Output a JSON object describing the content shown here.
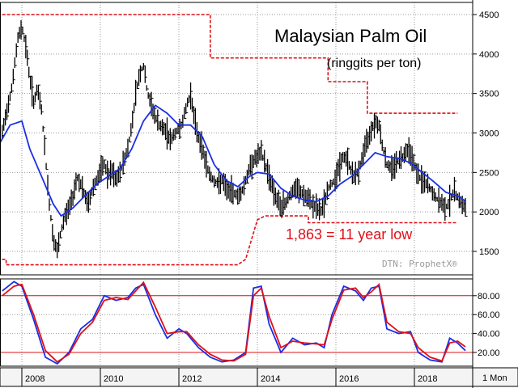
{
  "chart_data": [
    {
      "type": "bar",
      "subtype": "weekly-hlc-price-bars-with-moving-average",
      "title": "Malaysian Palm Oil",
      "subtitle": "(ringgits per ton)",
      "annotation": "1,863 = 11 year low",
      "watermark": "DTN: ProphetX®",
      "ylim": [
        1250,
        4550
      ],
      "yticks": [
        1500,
        2000,
        2500,
        3000,
        3500,
        4000,
        4500
      ],
      "grid": true,
      "colors": {
        "bars": "#000000",
        "moving_average": "#1a2ee6",
        "guides": "#e0101a",
        "grid": "#9a9a9a"
      },
      "price": [
        [
          2007.5,
          3000
        ],
        [
          2007.75,
          3600
        ],
        [
          2007.9,
          4200
        ],
        [
          2008.0,
          4350
        ],
        [
          2008.1,
          4100
        ],
        [
          2008.2,
          3700
        ],
        [
          2008.3,
          3400
        ],
        [
          2008.4,
          3550
        ],
        [
          2008.5,
          3300
        ],
        [
          2008.6,
          2700
        ],
        [
          2008.7,
          2100
        ],
        [
          2008.8,
          1650
        ],
        [
          2008.9,
          1500
        ],
        [
          2009.0,
          1750
        ],
        [
          2009.1,
          1950
        ],
        [
          2009.2,
          2050
        ],
        [
          2009.3,
          2200
        ],
        [
          2009.4,
          2450
        ],
        [
          2009.5,
          2350
        ],
        [
          2009.6,
          2200
        ],
        [
          2009.7,
          2100
        ],
        [
          2009.8,
          2300
        ],
        [
          2009.9,
          2400
        ],
        [
          2010.0,
          2500
        ],
        [
          2010.1,
          2600
        ],
        [
          2010.2,
          2450
        ],
        [
          2010.3,
          2500
        ],
        [
          2010.4,
          2400
        ],
        [
          2010.5,
          2500
        ],
        [
          2010.6,
          2650
        ],
        [
          2010.7,
          2800
        ],
        [
          2010.8,
          3100
        ],
        [
          2010.9,
          3500
        ],
        [
          2011.0,
          3750
        ],
        [
          2011.1,
          3850
        ],
        [
          2011.2,
          3500
        ],
        [
          2011.3,
          3350
        ],
        [
          2011.4,
          3200
        ],
        [
          2011.5,
          3100
        ],
        [
          2011.6,
          3050
        ],
        [
          2011.7,
          3000
        ],
        [
          2011.8,
          2900
        ],
        [
          2011.9,
          3000
        ],
        [
          2012.0,
          3050
        ],
        [
          2012.1,
          3150
        ],
        [
          2012.2,
          3350
        ],
        [
          2012.3,
          3500
        ],
        [
          2012.4,
          3150
        ],
        [
          2012.5,
          2950
        ],
        [
          2012.6,
          2800
        ],
        [
          2012.7,
          2600
        ],
        [
          2012.8,
          2450
        ],
        [
          2012.9,
          2400
        ],
        [
          2013.0,
          2350
        ],
        [
          2013.1,
          2400
        ],
        [
          2013.2,
          2300
        ],
        [
          2013.3,
          2250
        ],
        [
          2013.4,
          2250
        ],
        [
          2013.5,
          2200
        ],
        [
          2013.6,
          2250
        ],
        [
          2013.7,
          2400
        ],
        [
          2013.8,
          2550
        ],
        [
          2013.9,
          2650
        ],
        [
          2014.0,
          2700
        ],
        [
          2014.1,
          2750
        ],
        [
          2014.2,
          2600
        ],
        [
          2014.3,
          2450
        ],
        [
          2014.4,
          2300
        ],
        [
          2014.5,
          2150
        ],
        [
          2014.6,
          2050
        ],
        [
          2014.7,
          2100
        ],
        [
          2014.8,
          2200
        ],
        [
          2014.9,
          2250
        ],
        [
          2015.0,
          2300
        ],
        [
          2015.1,
          2250
        ],
        [
          2015.2,
          2200
        ],
        [
          2015.3,
          2150
        ],
        [
          2015.4,
          2100
        ],
        [
          2015.5,
          2050
        ],
        [
          2015.6,
          2000
        ],
        [
          2015.7,
          2100
        ],
        [
          2015.8,
          2300
        ],
        [
          2015.9,
          2350
        ],
        [
          2016.0,
          2450
        ],
        [
          2016.1,
          2600
        ],
        [
          2016.2,
          2700
        ],
        [
          2016.3,
          2650
        ],
        [
          2016.4,
          2500
        ],
        [
          2016.5,
          2450
        ],
        [
          2016.6,
          2550
        ],
        [
          2016.7,
          2750
        ],
        [
          2016.8,
          2900
        ],
        [
          2016.9,
          3050
        ],
        [
          2017.0,
          3150
        ],
        [
          2017.1,
          3100
        ],
        [
          2017.2,
          2800
        ],
        [
          2017.3,
          2600
        ],
        [
          2017.4,
          2550
        ],
        [
          2017.5,
          2600
        ],
        [
          2017.6,
          2650
        ],
        [
          2017.7,
          2700
        ],
        [
          2017.8,
          2800
        ],
        [
          2017.9,
          2750
        ],
        [
          2018.0,
          2600
        ],
        [
          2018.1,
          2450
        ],
        [
          2018.2,
          2400
        ],
        [
          2018.3,
          2350
        ],
        [
          2018.4,
          2300
        ],
        [
          2018.5,
          2200
        ],
        [
          2018.6,
          2150
        ],
        [
          2018.7,
          2100
        ],
        [
          2018.8,
          2050
        ],
        [
          2018.9,
          2150
        ],
        [
          2019.0,
          2250
        ],
        [
          2019.1,
          2200
        ],
        [
          2019.2,
          2100
        ],
        [
          2019.3,
          2050
        ]
      ],
      "moving_average": [
        [
          2007.0,
          2380
        ],
        [
          2007.3,
          2750
        ],
        [
          2007.7,
          3100
        ],
        [
          2008.0,
          3150
        ],
        [
          2008.2,
          2800
        ],
        [
          2008.5,
          2450
        ],
        [
          2008.8,
          2100
        ],
        [
          2009.0,
          1950
        ],
        [
          2009.3,
          2050
        ],
        [
          2009.6,
          2200
        ],
        [
          2009.9,
          2350
        ],
        [
          2010.2,
          2450
        ],
        [
          2010.5,
          2550
        ],
        [
          2010.8,
          2800
        ],
        [
          2011.1,
          3150
        ],
        [
          2011.4,
          3350
        ],
        [
          2011.7,
          3250
        ],
        [
          2012.0,
          3100
        ],
        [
          2012.3,
          3100
        ],
        [
          2012.6,
          2950
        ],
        [
          2012.9,
          2600
        ],
        [
          2013.2,
          2400
        ],
        [
          2013.5,
          2320
        ],
        [
          2013.8,
          2450
        ],
        [
          2014.0,
          2500
        ],
        [
          2014.3,
          2480
        ],
        [
          2014.6,
          2300
        ],
        [
          2014.9,
          2200
        ],
        [
          2015.2,
          2150
        ],
        [
          2015.5,
          2130
        ],
        [
          2015.8,
          2200
        ],
        [
          2016.1,
          2350
        ],
        [
          2016.4,
          2450
        ],
        [
          2016.7,
          2600
        ],
        [
          2017.0,
          2750
        ],
        [
          2017.3,
          2700
        ],
        [
          2017.6,
          2680
        ],
        [
          2017.9,
          2620
        ],
        [
          2018.2,
          2500
        ],
        [
          2018.5,
          2380
        ],
        [
          2018.8,
          2250
        ],
        [
          2019.1,
          2200
        ],
        [
          2019.3,
          2140
        ]
      ],
      "upper_guide": [
        [
          2007.0,
          4500
        ],
        [
          2012.8,
          4500
        ],
        [
          2012.8,
          3950
        ],
        [
          2015.8,
          3950
        ],
        [
          2015.8,
          3650
        ],
        [
          2016.8,
          3650
        ],
        [
          2016.8,
          3250
        ],
        [
          2019.1,
          3250
        ]
      ],
      "lower_guide": [
        [
          2007.0,
          1400
        ],
        [
          2007.6,
          1400
        ],
        [
          2007.6,
          1330
        ],
        [
          2013.5,
          1330
        ],
        [
          2013.7,
          1400
        ],
        [
          2014.0,
          1900
        ],
        [
          2014.2,
          1950
        ],
        [
          2015.3,
          1950
        ],
        [
          2015.3,
          1863
        ],
        [
          2019.1,
          1863
        ]
      ]
    },
    {
      "type": "line",
      "subtype": "stochastic-oscillator",
      "ylim": [
        0,
        100
      ],
      "yticks": [
        "20.00",
        "40.00",
        "60.00",
        "80.00"
      ],
      "reference_lines": [
        20,
        80
      ],
      "series": [
        {
          "color": "#1a2ee6",
          "values": [
            [
              2007.5,
              85
            ],
            [
              2007.8,
              95
            ],
            [
              2008.0,
              90
            ],
            [
              2008.3,
              55
            ],
            [
              2008.6,
              15
            ],
            [
              2008.9,
              8
            ],
            [
              2009.2,
              20
            ],
            [
              2009.5,
              45
            ],
            [
              2009.8,
              55
            ],
            [
              2010.1,
              80
            ],
            [
              2010.4,
              75
            ],
            [
              2010.7,
              78
            ],
            [
              2010.9,
              88
            ],
            [
              2011.1,
              92
            ],
            [
              2011.4,
              60
            ],
            [
              2011.7,
              35
            ],
            [
              2012.0,
              45
            ],
            [
              2012.2,
              40
            ],
            [
              2012.5,
              25
            ],
            [
              2012.8,
              15
            ],
            [
              2013.1,
              10
            ],
            [
              2013.4,
              12
            ],
            [
              2013.7,
              20
            ],
            [
              2013.9,
              88
            ],
            [
              2014.1,
              90
            ],
            [
              2014.3,
              50
            ],
            [
              2014.6,
              20
            ],
            [
              2014.9,
              35
            ],
            [
              2015.2,
              28
            ],
            [
              2015.5,
              30
            ],
            [
              2015.7,
              25
            ],
            [
              2015.9,
              60
            ],
            [
              2016.2,
              90
            ],
            [
              2016.5,
              85
            ],
            [
              2016.7,
              75
            ],
            [
              2016.9,
              88
            ],
            [
              2017.1,
              90
            ],
            [
              2017.3,
              45
            ],
            [
              2017.6,
              40
            ],
            [
              2017.9,
              42
            ],
            [
              2018.1,
              20
            ],
            [
              2018.4,
              12
            ],
            [
              2018.7,
              10
            ],
            [
              2018.9,
              35
            ],
            [
              2019.1,
              30
            ],
            [
              2019.3,
              22
            ]
          ]
        },
        {
          "color": "#e0101a",
          "values": [
            [
              2007.5,
              80
            ],
            [
              2007.8,
              90
            ],
            [
              2008.0,
              92
            ],
            [
              2008.3,
              60
            ],
            [
              2008.6,
              22
            ],
            [
              2008.9,
              10
            ],
            [
              2009.2,
              18
            ],
            [
              2009.5,
              40
            ],
            [
              2009.8,
              52
            ],
            [
              2010.1,
              75
            ],
            [
              2010.4,
              78
            ],
            [
              2010.7,
              76
            ],
            [
              2010.9,
              85
            ],
            [
              2011.1,
              94
            ],
            [
              2011.4,
              68
            ],
            [
              2011.7,
              40
            ],
            [
              2012.0,
              42
            ],
            [
              2012.2,
              42
            ],
            [
              2012.5,
              28
            ],
            [
              2012.8,
              18
            ],
            [
              2013.1,
              12
            ],
            [
              2013.4,
              11
            ],
            [
              2013.7,
              18
            ],
            [
              2013.9,
              80
            ],
            [
              2014.1,
              88
            ],
            [
              2014.3,
              58
            ],
            [
              2014.6,
              25
            ],
            [
              2014.9,
              32
            ],
            [
              2015.2,
              30
            ],
            [
              2015.5,
              29
            ],
            [
              2015.7,
              28
            ],
            [
              2015.9,
              55
            ],
            [
              2016.2,
              86
            ],
            [
              2016.5,
              88
            ],
            [
              2016.7,
              78
            ],
            [
              2016.9,
              84
            ],
            [
              2017.1,
              92
            ],
            [
              2017.3,
              52
            ],
            [
              2017.6,
              42
            ],
            [
              2017.9,
              40
            ],
            [
              2018.1,
              25
            ],
            [
              2018.4,
              15
            ],
            [
              2018.7,
              11
            ],
            [
              2018.9,
              30
            ],
            [
              2019.1,
              32
            ],
            [
              2019.3,
              26
            ]
          ]
        }
      ]
    }
  ],
  "xaxis": {
    "ticks": [
      "2008",
      "2010",
      "2012",
      "2014",
      "2016",
      "2018"
    ],
    "period": "1 Mon"
  }
}
